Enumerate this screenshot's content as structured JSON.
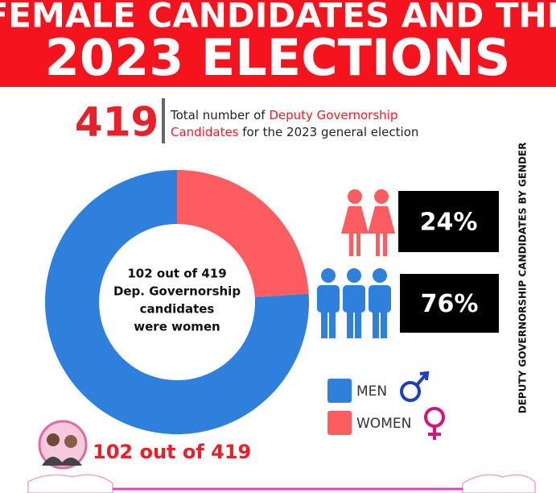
{
  "chart_data": {
    "type": "donut",
    "title": [
      "FEMALE CANDIDATES AND THE",
      "2023 ELECTIONS"
    ],
    "headline_number": "419",
    "headline_text": [
      [
        {
          "text": "Total number of ",
          "color": "#222222"
        },
        {
          "text": "Deputy Governorship",
          "color": "#e8202a"
        }
      ],
      [
        {
          "text": "Candidates",
          "color": "#e8202a"
        },
        {
          "text": " for the 2023 general election",
          "color": "#222222"
        }
      ]
    ],
    "center_text": [
      "102 out of 419",
      "Dep. Governorship",
      "candidates",
      "were women"
    ],
    "side_title": "DEPUTY GOVERNORSHIP CANDIDATES BY GENDER",
    "footer_text": "102 out of 419",
    "categories": [
      "MEN",
      "WOMEN"
    ],
    "values": [
      76,
      24
    ],
    "value_labels": [
      "76%",
      "24%"
    ],
    "colors": [
      "#2f80dc",
      "#fd5c61"
    ]
  }
}
